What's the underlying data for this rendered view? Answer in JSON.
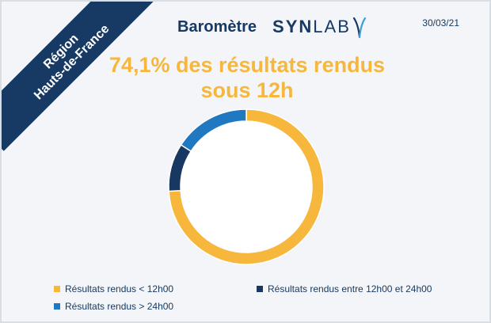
{
  "ribbon": {
    "line1": "Région",
    "line2": "Hauts-de-France"
  },
  "header": {
    "barometre": "Baromètre",
    "synlab_bold": "SYN",
    "synlab_light": "LAB",
    "date": "30/03/21"
  },
  "headline": {
    "line1": "74,1% des résultats rendus",
    "line2": "sous 12h"
  },
  "colors": {
    "navy": "#173a64",
    "orange": "#f6b73c",
    "blue": "#1f78c0",
    "dark_navy": "#183761"
  },
  "chart_data": {
    "type": "pie",
    "donut": true,
    "categories": [
      "Résultats rendus < 12h00",
      "Résultats rendus entre 12h00 et 24h00",
      "Résultats rendus > 24h00"
    ],
    "values": [
      74.1,
      10.0,
      15.9
    ],
    "colors": [
      "#f6b73c",
      "#183761",
      "#1f78c0"
    ],
    "start_angle_deg": 0,
    "direction": "clockwise",
    "legend_placement": "bottom"
  }
}
